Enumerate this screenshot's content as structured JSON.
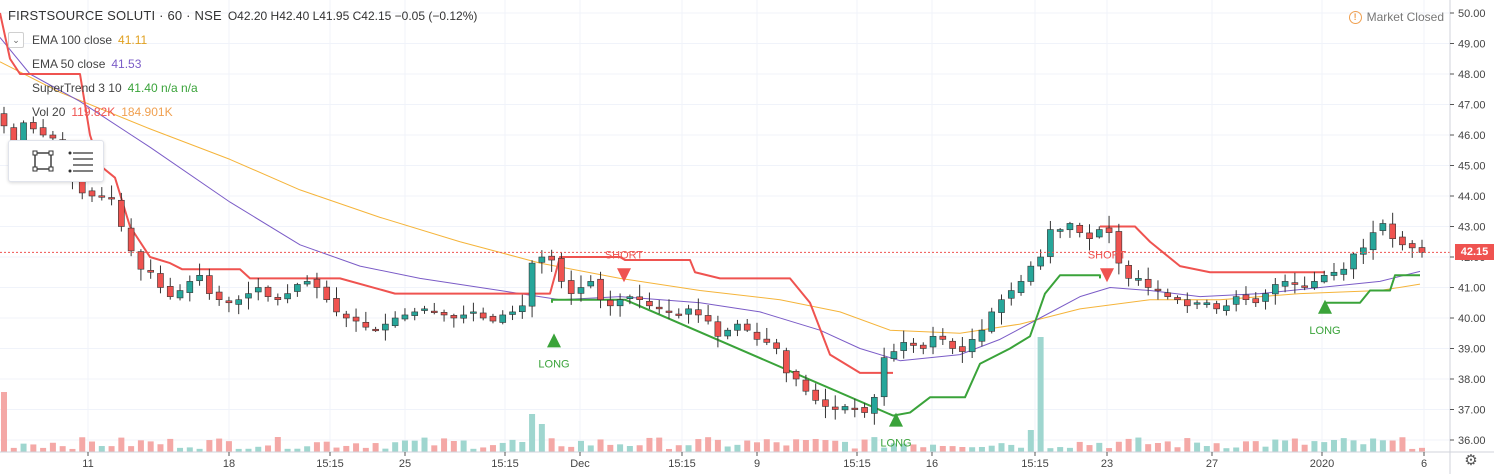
{
  "header": {
    "symbol": "FIRSTSOURCE SOLUTI · 60 · NSE",
    "ohlc": "O42.20  H42.40  L41.95  C42.15  −0.05 (−0.12%)"
  },
  "indicators": [
    {
      "name": "EMA 100 close",
      "value": "41.11",
      "color": "#f0b035"
    },
    {
      "name": "EMA 50 close",
      "value": "41.53",
      "color": "#7b5cc7"
    },
    {
      "name": "SuperTrend 3 10",
      "value": "41.40  n/a  n/a",
      "color": "#3aa33a"
    },
    {
      "name": "Vol 20",
      "value": "119.82K",
      "value2": "184.901K",
      "color": "#ef5350",
      "color2": "#f0a050"
    }
  ],
  "market_status": "Market Closed",
  "current_price_label": "42.15",
  "colors": {
    "up": "#26a69a",
    "down": "#ef5350",
    "ema100": "#f5b43a",
    "ema50": "#7b5cc7",
    "supertrend_up": "#3aa33a",
    "supertrend_down": "#ef5350",
    "vol_up": "#9fd6cf",
    "vol_down": "#f4a8a6",
    "grid": "#f0f3fa"
  },
  "icons": [
    "rectangle-tool-icon",
    "hamburger-menu-icon",
    "warning-icon",
    "gear-icon",
    "chevron-down-icon"
  ],
  "chart_data": {
    "type": "candlestick",
    "title": "FIRSTSOURCE SOLUTI · 60 · NSE",
    "y_axis": {
      "ticks": [
        "50.00",
        "49.00",
        "48.00",
        "47.00",
        "46.00",
        "45.00",
        "44.00",
        "43.00",
        "42.00",
        "41.00",
        "40.00",
        "39.00",
        "38.00",
        "37.00",
        "36.00"
      ],
      "range": [
        35.8,
        50.2
      ]
    },
    "x_axis": {
      "ticks": [
        "11",
        "18",
        "15:15",
        "25",
        "15:15",
        "Dec",
        "15:15",
        "9",
        "15:15",
        "16",
        "15:15",
        "23",
        "27",
        "2020",
        "6"
      ]
    },
    "close_path": [
      46.3,
      45.6,
      46.4,
      46.2,
      46.0,
      45.9,
      45.2,
      44.6,
      44.1,
      44.0,
      44.0,
      43.9,
      43.0,
      42.2,
      41.6,
      41.5,
      41.0,
      40.7,
      40.9,
      41.2,
      41.4,
      40.8,
      40.6,
      40.5,
      40.6,
      40.8,
      41.0,
      40.7,
      40.6,
      40.8,
      41.1,
      41.2,
      41.0,
      40.6,
      40.2,
      40.0,
      39.9,
      39.7,
      39.6,
      39.8,
      40.0,
      40.1,
      40.2,
      40.3,
      40.2,
      40.1,
      40.0,
      40.1,
      40.2,
      40.0,
      39.9,
      40.1,
      40.2,
      40.4,
      41.8,
      42.0,
      41.9,
      41.2,
      40.8,
      41.0,
      41.2,
      40.6,
      40.4,
      40.6,
      40.7,
      40.6,
      40.4,
      40.3,
      40.2,
      40.1,
      40.3,
      40.1,
      39.9,
      39.4,
      39.6,
      39.8,
      39.6,
      39.3,
      39.2,
      39.0,
      38.2,
      38.0,
      37.6,
      37.3,
      37.1,
      37.0,
      37.1,
      37.0,
      36.9,
      37.4,
      38.7,
      38.9,
      39.2,
      39.1,
      39.0,
      39.4,
      39.3,
      39.0,
      38.9,
      39.3,
      39.6,
      40.2,
      40.6,
      40.9,
      41.2,
      41.7,
      42.0,
      42.9,
      42.9,
      43.1,
      42.8,
      42.6,
      42.9,
      42.8,
      41.8,
      41.3,
      41.3,
      41.0,
      40.9,
      40.7,
      40.6,
      40.4,
      40.5,
      40.5,
      40.3,
      40.4,
      40.7,
      40.6,
      40.5,
      40.8,
      41.1,
      41.2,
      41.1,
      41.0,
      41.2,
      41.4,
      41.5,
      41.6,
      42.1,
      42.3,
      42.8,
      43.1,
      42.6,
      42.4,
      42.3,
      42.15
    ],
    "ema50": [
      [
        0,
        49.2
      ],
      [
        30,
        48.0
      ],
      [
        80,
        47.1
      ],
      [
        150,
        45.6
      ],
      [
        230,
        43.8
      ],
      [
        300,
        42.4
      ],
      [
        360,
        41.7
      ],
      [
        420,
        41.3
      ],
      [
        500,
        40.9
      ],
      [
        560,
        40.6
      ],
      [
        620,
        40.7
      ],
      [
        700,
        40.5
      ],
      [
        760,
        40.2
      ],
      [
        820,
        39.6
      ],
      [
        860,
        39.0
      ],
      [
        900,
        38.6
      ],
      [
        960,
        38.8
      ],
      [
        1000,
        39.3
      ],
      [
        1040,
        40.0
      ],
      [
        1080,
        40.7
      ],
      [
        1110,
        41.0
      ],
      [
        1150,
        40.9
      ],
      [
        1200,
        40.7
      ],
      [
        1260,
        40.8
      ],
      [
        1320,
        41.0
      ],
      [
        1380,
        41.2
      ],
      [
        1420,
        41.53
      ]
    ],
    "ema100": [
      [
        0,
        48.4
      ],
      [
        60,
        47.4
      ],
      [
        150,
        46.2
      ],
      [
        230,
        45.2
      ],
      [
        300,
        44.2
      ],
      [
        380,
        43.3
      ],
      [
        460,
        42.5
      ],
      [
        540,
        41.8
      ],
      [
        620,
        41.3
      ],
      [
        700,
        40.9
      ],
      [
        780,
        40.6
      ],
      [
        840,
        40.2
      ],
      [
        890,
        39.6
      ],
      [
        960,
        39.5
      ],
      [
        1020,
        39.8
      ],
      [
        1080,
        40.3
      ],
      [
        1150,
        40.6
      ],
      [
        1220,
        40.6
      ],
      [
        1300,
        40.8
      ],
      [
        1380,
        40.9
      ],
      [
        1420,
        41.11
      ]
    ],
    "supertrend_down": [
      [
        0,
        50.0
      ],
      [
        10,
        48.5
      ],
      [
        20,
        48.0
      ],
      [
        80,
        48.0
      ],
      [
        90,
        46.0
      ],
      [
        100,
        45.0
      ],
      [
        115,
        44.6
      ],
      [
        130,
        43.0
      ],
      [
        150,
        42.0
      ],
      [
        170,
        41.8
      ],
      [
        182,
        41.6
      ],
      [
        240,
        41.6
      ],
      [
        250,
        41.3
      ],
      [
        340,
        41.3
      ],
      [
        395,
        40.8
      ],
      [
        440,
        40.8
      ],
      [
        550,
        40.8
      ],
      [
        560,
        42.0
      ],
      [
        620,
        42.0
      ],
      [
        625,
        41.9
      ],
      [
        690,
        41.9
      ],
      [
        695,
        41.5
      ],
      [
        720,
        41.3
      ],
      [
        790,
        41.3
      ],
      [
        810,
        40.5
      ],
      [
        830,
        38.8
      ],
      [
        860,
        38.2
      ],
      [
        893,
        38.2
      ]
    ],
    "supertrend_up": [
      [
        552,
        40.5
      ],
      [
        552,
        40.6
      ],
      [
        620,
        40.6
      ],
      [
        625,
        40.6
      ],
      [
        893,
        36.8
      ],
      [
        910,
        36.9
      ],
      [
        930,
        37.4
      ],
      [
        965,
        37.4
      ],
      [
        980,
        38.5
      ],
      [
        1010,
        39.0
      ],
      [
        1030,
        39.4
      ],
      [
        1045,
        40.8
      ],
      [
        1060,
        41.4
      ],
      [
        1100,
        41.4
      ],
      [
        1100,
        41.3
      ]
    ],
    "supertrend_down2": [
      [
        1100,
        43.0
      ],
      [
        1135,
        43.0
      ],
      [
        1150,
        42.5
      ],
      [
        1180,
        41.7
      ],
      [
        1210,
        41.5
      ],
      [
        1310,
        41.5
      ],
      [
        1325,
        41.5
      ]
    ],
    "supertrend_up2": [
      [
        1325,
        40.5
      ],
      [
        1360,
        40.5
      ],
      [
        1370,
        40.9
      ],
      [
        1390,
        40.9
      ],
      [
        1395,
        41.4
      ],
      [
        1420,
        41.4
      ]
    ],
    "signals": [
      {
        "label": "LONG",
        "type": "long"
      },
      {
        "label": "SHORT",
        "type": "short"
      },
      {
        "label": "LONG",
        "type": "long"
      },
      {
        "label": "SHORT",
        "type": "short"
      },
      {
        "label": "LONG",
        "type": "long"
      }
    ],
    "volume_spikes": [
      {
        "bar": 0,
        "value": "high"
      },
      {
        "bar": 54,
        "value": "high"
      },
      {
        "bar": 106,
        "value": "very high"
      }
    ]
  }
}
